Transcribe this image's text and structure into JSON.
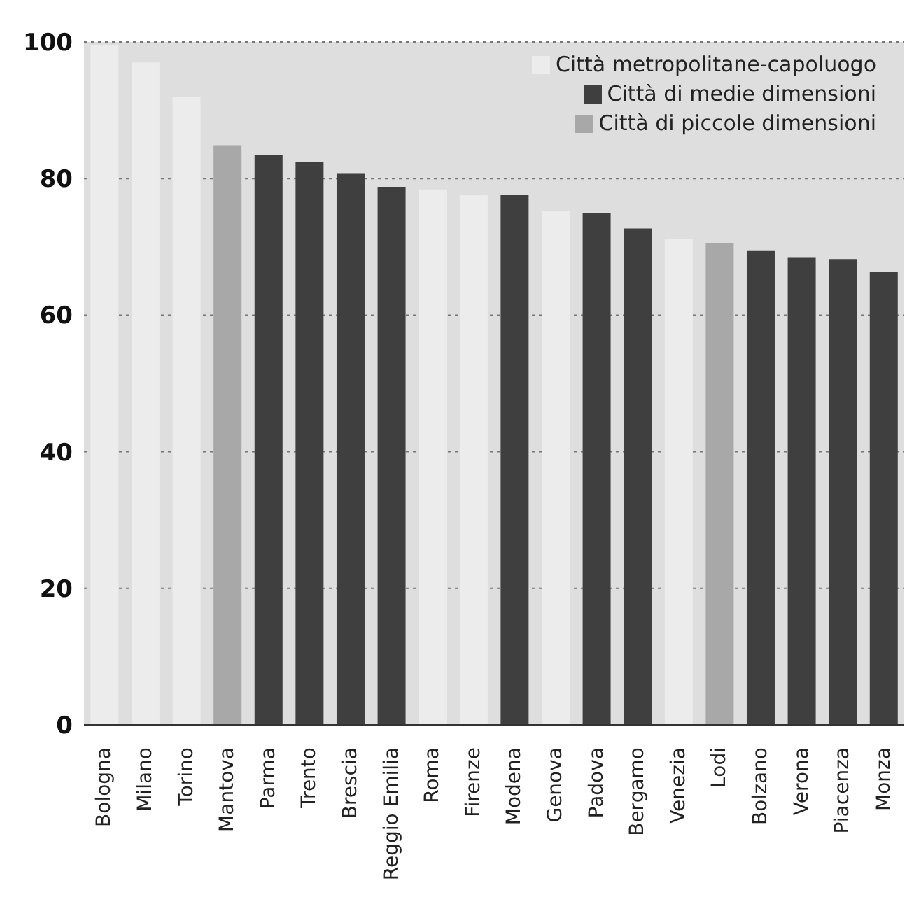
{
  "chart_data": {
    "type": "bar",
    "categories": [
      "Bologna",
      "Milano",
      "Torino",
      "Mantova",
      "Parma",
      "Trento",
      "Brescia",
      "Reggio Emilia",
      "Roma",
      "Firenze",
      "Modena",
      "Genova",
      "Padova",
      "Bergamo",
      "Venezia",
      "Lodi",
      "Bolzano",
      "Verona",
      "Piacenza",
      "Monza"
    ],
    "series": [
      {
        "name": "Città metropolitane-capoluogo",
        "color": "#ececec",
        "values": [
          99.5,
          97,
          92,
          null,
          null,
          null,
          null,
          null,
          78.4,
          77.6,
          null,
          75.3,
          null,
          null,
          71.2,
          null,
          null,
          null,
          null,
          null
        ]
      },
      {
        "name": "Città di medie dimensioni",
        "color": "#3f3f3f",
        "values": [
          null,
          null,
          null,
          null,
          83.5,
          82.4,
          80.8,
          78.8,
          null,
          null,
          77.6,
          null,
          75,
          72.7,
          null,
          null,
          69.4,
          68.4,
          68.2,
          66.3
        ]
      },
      {
        "name": "Città di piccole dimensioni",
        "color": "#a8a8a8",
        "values": [
          null,
          null,
          null,
          84.9,
          null,
          null,
          null,
          null,
          null,
          null,
          null,
          null,
          null,
          null,
          null,
          70.6,
          null,
          null,
          null,
          null
        ]
      }
    ],
    "stacked": true,
    "ylim": [
      0,
      100
    ],
    "yticks": [
      0,
      20,
      40,
      60,
      80,
      100
    ],
    "grid": "y",
    "legend": "top right"
  }
}
